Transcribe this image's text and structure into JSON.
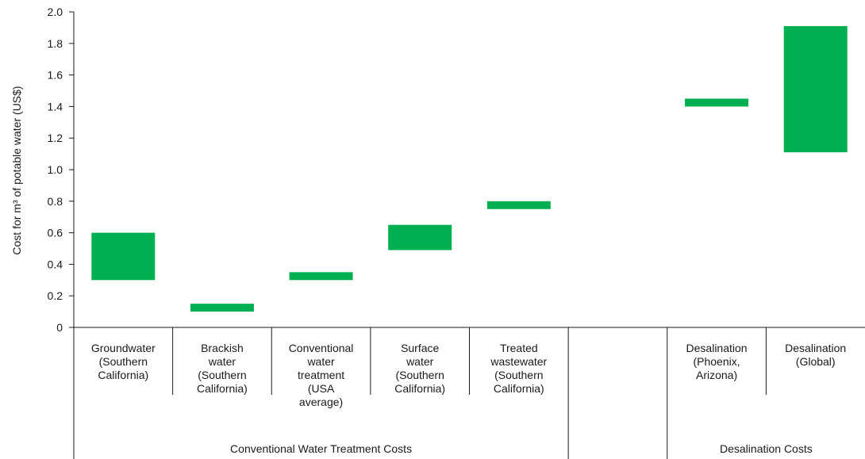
{
  "colors": {
    "bar": "#00b050",
    "axis": "#1a1a1a"
  },
  "chart_data": {
    "type": "bar",
    "subtype": "floating-range",
    "ylabel": "Cost for m³ of potable water (US$)",
    "ylim": [
      0,
      2.0
    ],
    "yticks": [
      "0",
      "0.2",
      "0.4",
      "0.6",
      "0.8",
      "1.0",
      "1.2",
      "1.4",
      "1.6",
      "1.8",
      "2.0"
    ],
    "grid": false,
    "categories": [
      "Groundwater (Southern California)",
      "Brackish water (Southern California)",
      "Conventional water treatment (USA average)",
      "Surface water (Southern California)",
      "Treated wastewater (Southern California)",
      "",
      "Desalination (Phoenix, Arizona)",
      "Desalination (Global)"
    ],
    "category_lines": [
      [
        "Groundwater",
        "(Southern",
        "California)"
      ],
      [
        "Brackish",
        "water",
        "(Southern",
        "California)"
      ],
      [
        "Conventional",
        "water",
        "treatment",
        "(USA",
        "average)"
      ],
      [
        "Surface",
        "water",
        "(Southern",
        "California)"
      ],
      [
        "Treated",
        "wastewater",
        "(Southern",
        "California)"
      ],
      [],
      [
        "Desalination",
        "(Phoenix,",
        "Arizona)"
      ],
      [
        "Desalination",
        "(Global)"
      ]
    ],
    "ranges": [
      [
        0.3,
        0.6
      ],
      [
        0.1,
        0.15
      ],
      [
        0.3,
        0.35
      ],
      [
        0.49,
        0.65
      ],
      [
        0.75,
        0.8
      ],
      null,
      [
        1.4,
        1.45
      ],
      [
        1.11,
        1.91
      ]
    ],
    "groups": [
      {
        "label": "Conventional Water Treatment Costs",
        "categories": [
          0,
          4
        ]
      },
      {
        "label": "Desalination Costs",
        "categories": [
          6,
          7
        ]
      }
    ]
  }
}
